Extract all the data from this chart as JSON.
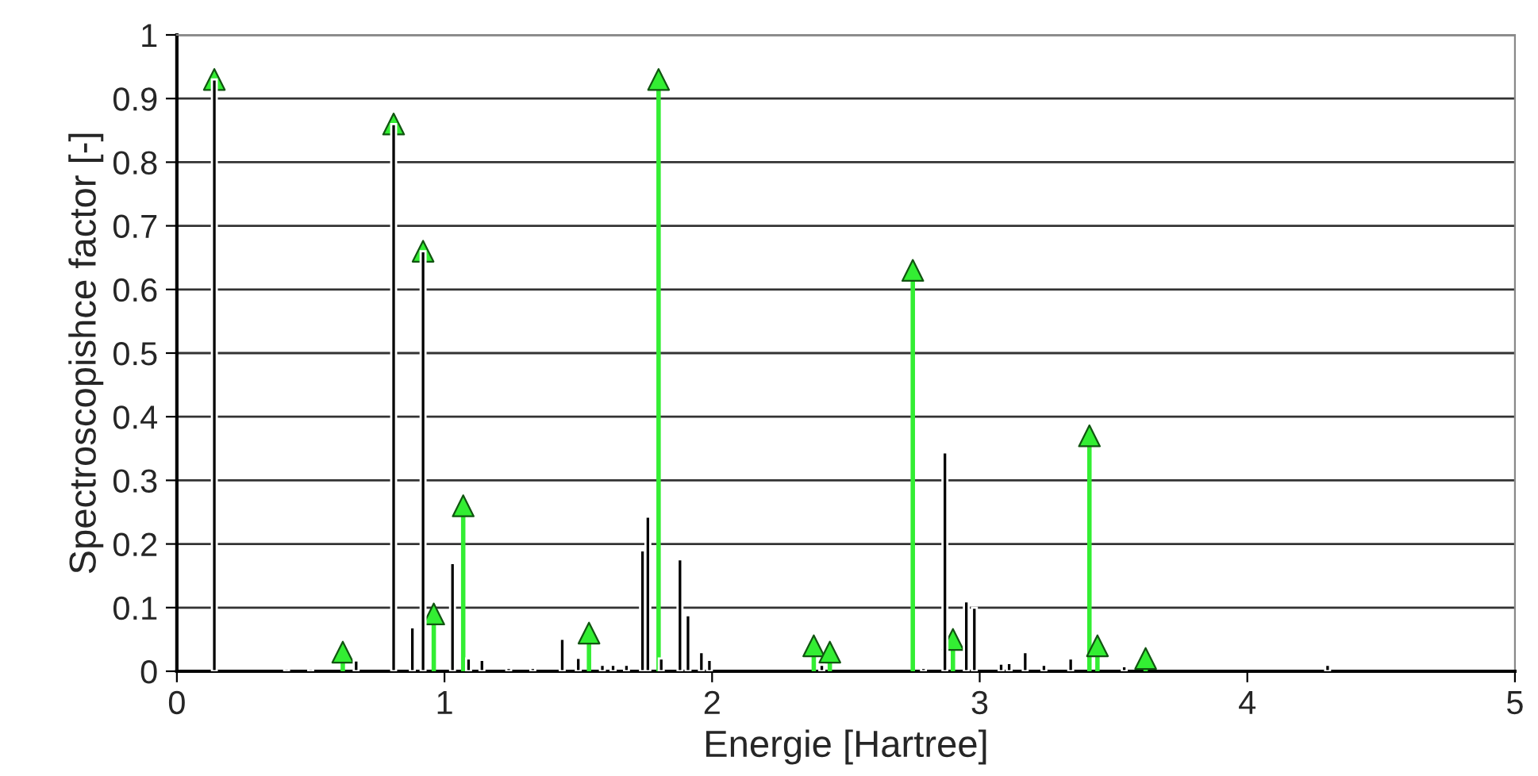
{
  "chart_data": {
    "type": "bar",
    "xlabel": "Energie [Hartree]",
    "ylabel": "Spectroscopishce factor [-]",
    "xlim": [
      0,
      5
    ],
    "xticks": [
      0,
      1,
      2,
      3,
      4,
      5
    ],
    "ylim": [
      0,
      1
    ],
    "yticks": [
      0,
      0.1,
      0.2,
      0.3,
      0.4,
      0.5,
      0.6,
      0.7,
      0.8,
      0.9,
      1
    ],
    "grid": "y",
    "legend": false,
    "series": [
      {
        "color": "#000000",
        "x": [
          0.14,
          0.41,
          0.5,
          0.67,
          0.81,
          0.88,
          0.92,
          1.03,
          1.09,
          1.14,
          1.24,
          1.33,
          1.44,
          1.5,
          1.59,
          1.63,
          1.68,
          1.74,
          1.76,
          1.81,
          1.88,
          1.91,
          1.96,
          1.99,
          2.41,
          2.79,
          2.87,
          2.95,
          2.98,
          3.08,
          3.11,
          3.17,
          3.24,
          3.34,
          3.54,
          4.3
        ],
        "values": [
          0.93,
          0.004,
          0.004,
          0.017,
          0.86,
          0.069,
          0.66,
          0.17,
          0.02,
          0.018,
          0.005,
          0.005,
          0.051,
          0.021,
          0.01,
          0.01,
          0.01,
          0.19,
          0.243,
          0.02,
          0.176,
          0.088,
          0.03,
          0.018,
          0.01,
          0.005,
          0.344,
          0.11,
          0.1,
          0.012,
          0.013,
          0.03,
          0.01,
          0.02,
          0.008,
          0.01
        ]
      },
      {
        "type": "lollipop",
        "color": "#33ee33",
        "marker": "triangle",
        "x": [
          0.14,
          0.81,
          0.92,
          0.62,
          0.96,
          1.07,
          1.54,
          1.8,
          2.38,
          2.44,
          2.75,
          2.9,
          3.41,
          3.44,
          3.62
        ],
        "values": [
          0.93,
          0.86,
          0.66,
          0.03,
          0.09,
          0.26,
          0.06,
          0.93,
          0.04,
          0.03,
          0.63,
          0.05,
          0.37,
          0.04,
          0.02
        ]
      }
    ]
  }
}
